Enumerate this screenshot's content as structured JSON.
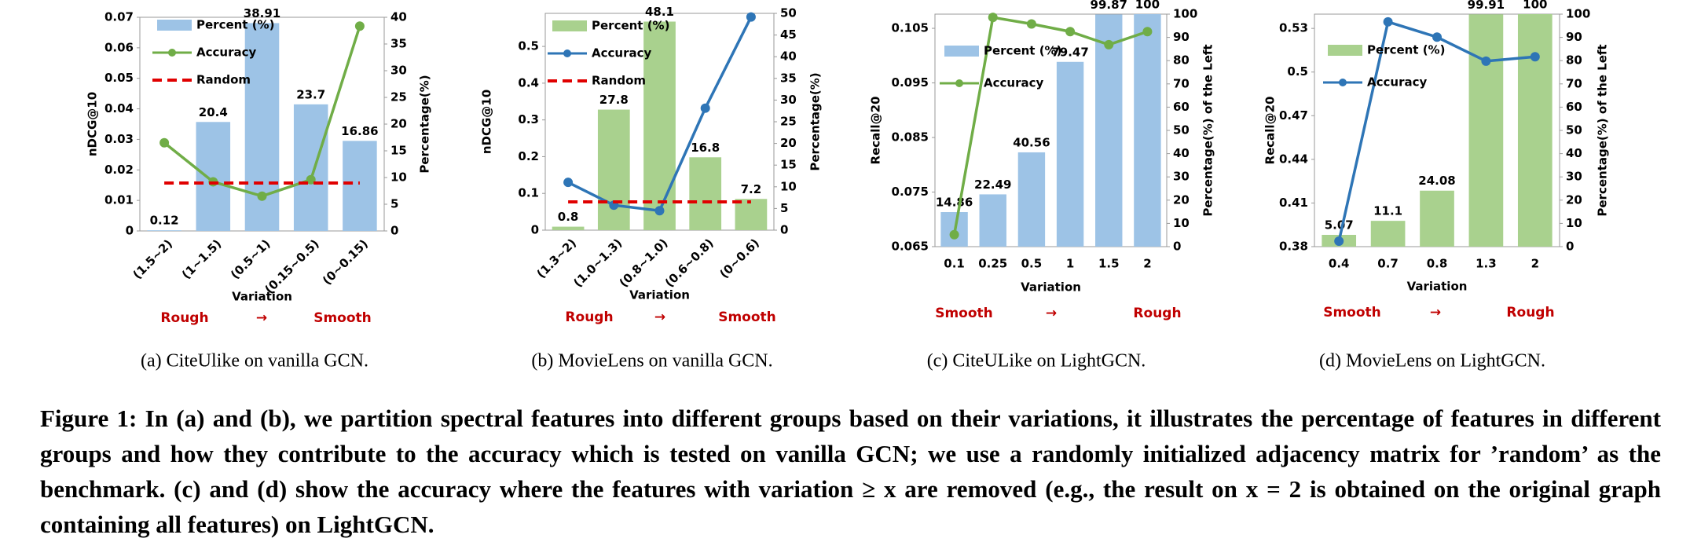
{
  "chart_data": [
    {
      "type": "combo",
      "subtitle": "(a)  CiteUlike on vanilla GCN.",
      "xlabel": "Variation",
      "ylabel": "nDCG@10",
      "y2label": "Percentage(%)",
      "categories": [
        "(1.5~2)",
        "(1~1.5)",
        "(0.5~1)",
        "(0.15~0.5)",
        "(0~0.15)"
      ],
      "series": [
        {
          "name": "Percent (%)",
          "mark": "bar",
          "axis": "y2",
          "color": "#9dc3e6",
          "values": [
            0.12,
            20.4,
            38.91,
            23.7,
            16.86
          ]
        },
        {
          "name": "Accuracy",
          "mark": "line",
          "marker": "circle",
          "color": "#70ad47",
          "values": [
            0.0289,
            0.0161,
            0.0114,
            0.0168,
            0.0671
          ]
        },
        {
          "name": "Random",
          "mark": "line",
          "dash": true,
          "color": "#e00000",
          "values": [
            0.0157,
            0.0157,
            0.0157,
            0.0157,
            0.0157
          ]
        }
      ],
      "ylim": [
        0,
        0.07
      ],
      "yticks": [
        0,
        0.01,
        0.02,
        0.03,
        0.04,
        0.05,
        0.06,
        0.07
      ],
      "y2lim": [
        0,
        40
      ],
      "y2ticks": [
        0,
        5,
        10,
        15,
        20,
        25,
        30,
        35,
        40
      ],
      "annotations": [
        "Rough",
        "→",
        "Smooth"
      ],
      "legend": "upper left"
    },
    {
      "type": "combo",
      "subtitle": "(b)  MovieLens on vanilla GCN.",
      "xlabel": "Variation",
      "ylabel": "nDCG@10",
      "y2label": "Percentage(%)",
      "categories": [
        "(1.3~2)",
        "(1.0~1.3)",
        "(0.8~1.0)",
        "(0.6~0.8)",
        "(0~0.6)"
      ],
      "series": [
        {
          "name": "Percent (%)",
          "mark": "bar",
          "axis": "y2",
          "color": "#a9d18e",
          "values": [
            0.8,
            27.8,
            48.1,
            16.8,
            7.2
          ]
        },
        {
          "name": "Accuracy",
          "mark": "line",
          "marker": "circle",
          "color": "#2e75b6",
          "values": [
            0.13,
            0.068,
            0.053,
            0.332,
            0.58
          ]
        },
        {
          "name": "Random",
          "mark": "line",
          "dash": true,
          "color": "#e00000",
          "values": [
            0.077,
            0.077,
            0.077,
            0.077,
            0.077
          ]
        }
      ],
      "ylim": [
        0,
        0.59
      ],
      "yticks": [
        0,
        0.1,
        0.2,
        0.3,
        0.4,
        0.5
      ],
      "y2lim": [
        0,
        50
      ],
      "y2ticks": [
        0,
        5,
        10,
        15,
        20,
        25,
        30,
        35,
        40,
        45,
        50
      ],
      "annotations": [
        "Rough",
        "→",
        "Smooth"
      ],
      "legend": "upper left"
    },
    {
      "type": "combo",
      "subtitle": "(c)  CiteULike on LightGCN.",
      "xlabel": "Variation",
      "ylabel": "Recall@20",
      "y2label": "Percentage(%) of the Left",
      "categories": [
        "0.1",
        "0.25",
        "0.5",
        "1",
        "1.5",
        "2"
      ],
      "series": [
        {
          "name": "Percent (%)",
          "mark": "bar",
          "axis": "y2",
          "color": "#9dc3e6",
          "values": [
            14.86,
            22.49,
            40.56,
            79.47,
            99.87,
            100
          ]
        },
        {
          "name": "Accuracy",
          "mark": "line",
          "marker": "circle",
          "color": "#70ad47",
          "values": [
            0.0672,
            0.107,
            0.1058,
            0.1044,
            0.102,
            0.1044
          ]
        }
      ],
      "ylim": [
        0.065,
        0.1076
      ],
      "yticks": [
        0.065,
        0.075,
        0.085,
        0.095,
        0.105
      ],
      "y2lim": [
        0,
        100
      ],
      "y2ticks": [
        0,
        10,
        20,
        30,
        40,
        50,
        60,
        70,
        80,
        90,
        100
      ],
      "annotations": [
        "Smooth",
        "→",
        "Rough"
      ],
      "legend": "upper left"
    },
    {
      "type": "combo",
      "subtitle": "(d)  MovieLens on LightGCN.",
      "xlabel": "Variation",
      "ylabel": "Recall@20",
      "y2label": "Percentage(%) of the Left",
      "categories": [
        "0.4",
        "0.7",
        "0.8",
        "1.3",
        "2"
      ],
      "series": [
        {
          "name": "Percent (%)",
          "mark": "bar",
          "axis": "y2",
          "color": "#a9d18e",
          "values": [
            5.07,
            11.1,
            24.08,
            99.91,
            100
          ]
        },
        {
          "name": "Accuracy",
          "mark": "line",
          "marker": "circle",
          "color": "#2e75b6",
          "values": [
            0.3838,
            0.5345,
            0.524,
            0.5075,
            0.5105
          ]
        }
      ],
      "ylim": [
        0.38,
        0.5398
      ],
      "yticks": [
        0.38,
        0.41,
        0.44,
        0.47,
        0.5,
        0.53
      ],
      "y2lim": [
        0,
        100
      ],
      "y2ticks": [
        0,
        10,
        20,
        30,
        40,
        50,
        60,
        70,
        80,
        90,
        100
      ],
      "annotations": [
        "Smooth",
        "→",
        "Rough"
      ],
      "legend": "upper left"
    }
  ],
  "caption": "Figure 1: In (a) and (b), we partition spectral features into different groups based on their variations, it illustrates the percentage of features in different groups and how they contribute to the accuracy which is tested on vanilla GCN; we use a randomly initialized adjacency matrix for ’random’ as the benchmark. (c) and (d) show the accuracy where the features with variation ≥ x are removed (e.g., the result on x = 2 is obtained on the original graph containing all features) on LightGCN."
}
